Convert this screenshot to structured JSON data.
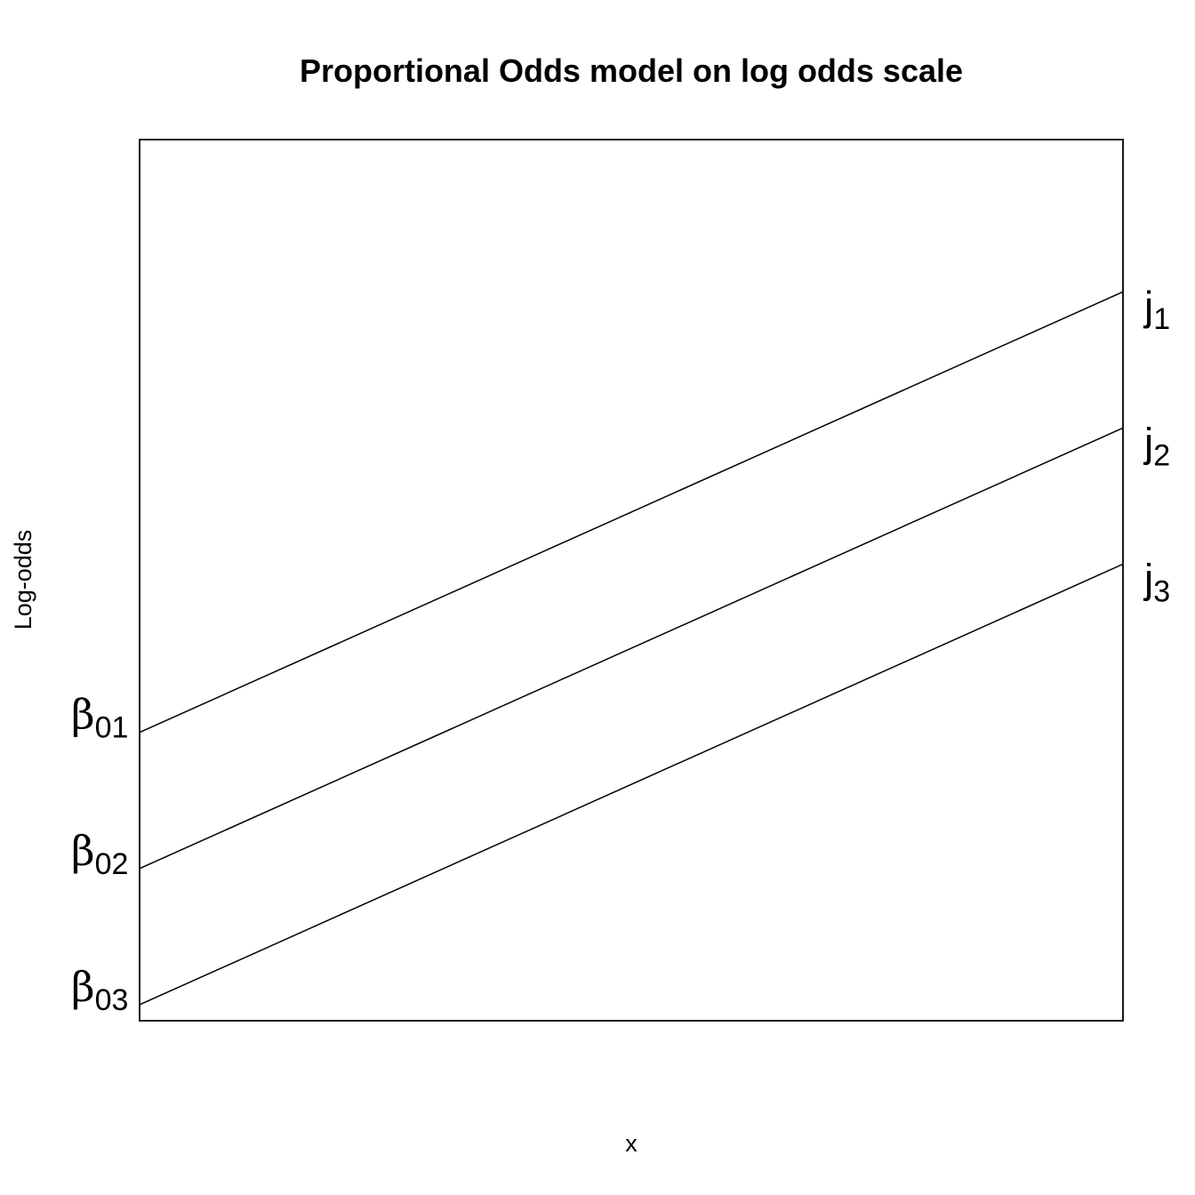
{
  "chart_data": {
    "type": "line",
    "title": "Proportional Odds model on log odds scale",
    "xlabel": "x",
    "ylabel": "Log-odds",
    "xlim": [
      0,
      1
    ],
    "ylim": [
      -1.0,
      4.5
    ],
    "grid": false,
    "ticks": false,
    "series": [
      {
        "x": [
          0,
          1
        ],
        "values": [
          0.8,
          3.55
        ],
        "intercept_label": {
          "symbol": "β",
          "subscript": "01"
        },
        "end_label": {
          "symbol": "j",
          "subscript": "1"
        }
      },
      {
        "x": [
          0,
          1
        ],
        "values": [
          -0.05,
          2.7
        ],
        "intercept_label": {
          "symbol": "β",
          "subscript": "02"
        },
        "end_label": {
          "symbol": "j",
          "subscript": "2"
        }
      },
      {
        "x": [
          0,
          1
        ],
        "values": [
          -0.9,
          1.85
        ],
        "intercept_label": {
          "symbol": "β",
          "subscript": "03"
        },
        "end_label": {
          "symbol": "j",
          "subscript": "3"
        }
      }
    ]
  }
}
